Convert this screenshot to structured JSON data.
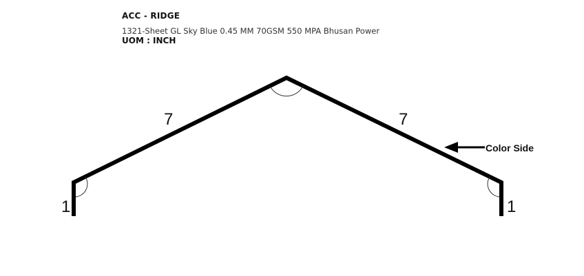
{
  "header": {
    "title": "ACC - RIDGE",
    "spec": "1321-Sheet GL Sky Blue 0.45 MM 70GSM 550 MPA Bhusan Power",
    "uom": "UOM : INCH"
  },
  "diagram": {
    "dimensions": {
      "left_leg": "1",
      "left_slope": "7",
      "right_slope": "7",
      "right_leg": "1"
    },
    "color_side_label": "Color Side",
    "stroke_color": "#000000"
  }
}
